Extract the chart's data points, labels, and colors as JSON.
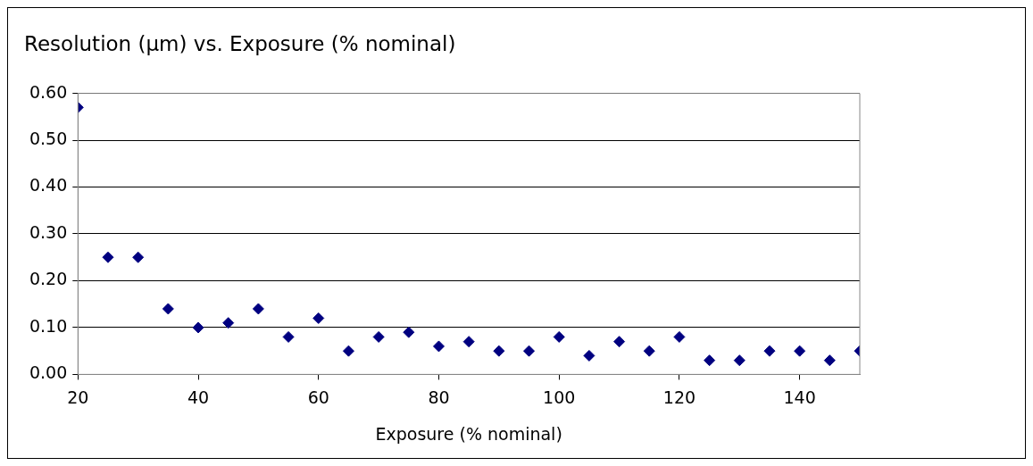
{
  "chart_data": {
    "type": "scatter",
    "title": "Resolution (µm) vs. Exposure (% nominal)",
    "xlabel": "Exposure (% nominal)",
    "x": [
      20,
      25,
      30,
      35,
      40,
      45,
      50,
      55,
      60,
      65,
      70,
      75,
      80,
      85,
      90,
      95,
      100,
      105,
      110,
      115,
      120,
      125,
      130,
      135,
      140,
      145,
      150
    ],
    "series": [
      {
        "color": "#000080",
        "values": [
          0.57,
          0.25,
          0.25,
          0.14,
          0.1,
          0.11,
          0.14,
          0.08,
          0.12,
          0.05,
          0.08,
          0.09,
          0.06,
          0.07,
          0.05,
          0.05,
          0.08,
          0.04,
          0.07,
          0.05,
          0.08,
          0.03,
          0.03,
          0.05,
          0.05,
          0.03,
          0.05
        ]
      }
    ],
    "xlim": [
      20,
      150
    ],
    "xticks": [
      20,
      40,
      60,
      80,
      100,
      120,
      140
    ],
    "ylim": [
      0,
      0.6
    ],
    "yticks": [
      {
        "value": 0,
        "label": "0.00"
      },
      {
        "value": 0.1,
        "label": "0.10"
      },
      {
        "value": 0.2,
        "label": "0.20"
      },
      {
        "value": 0.3,
        "label": "0.30"
      },
      {
        "value": 0.4,
        "label": "0.40"
      },
      {
        "value": 0.5,
        "label": "0.50"
      },
      {
        "value": 0.6,
        "label": "0.60"
      }
    ],
    "grid": "y",
    "legend": false,
    "marker": "diamond"
  }
}
